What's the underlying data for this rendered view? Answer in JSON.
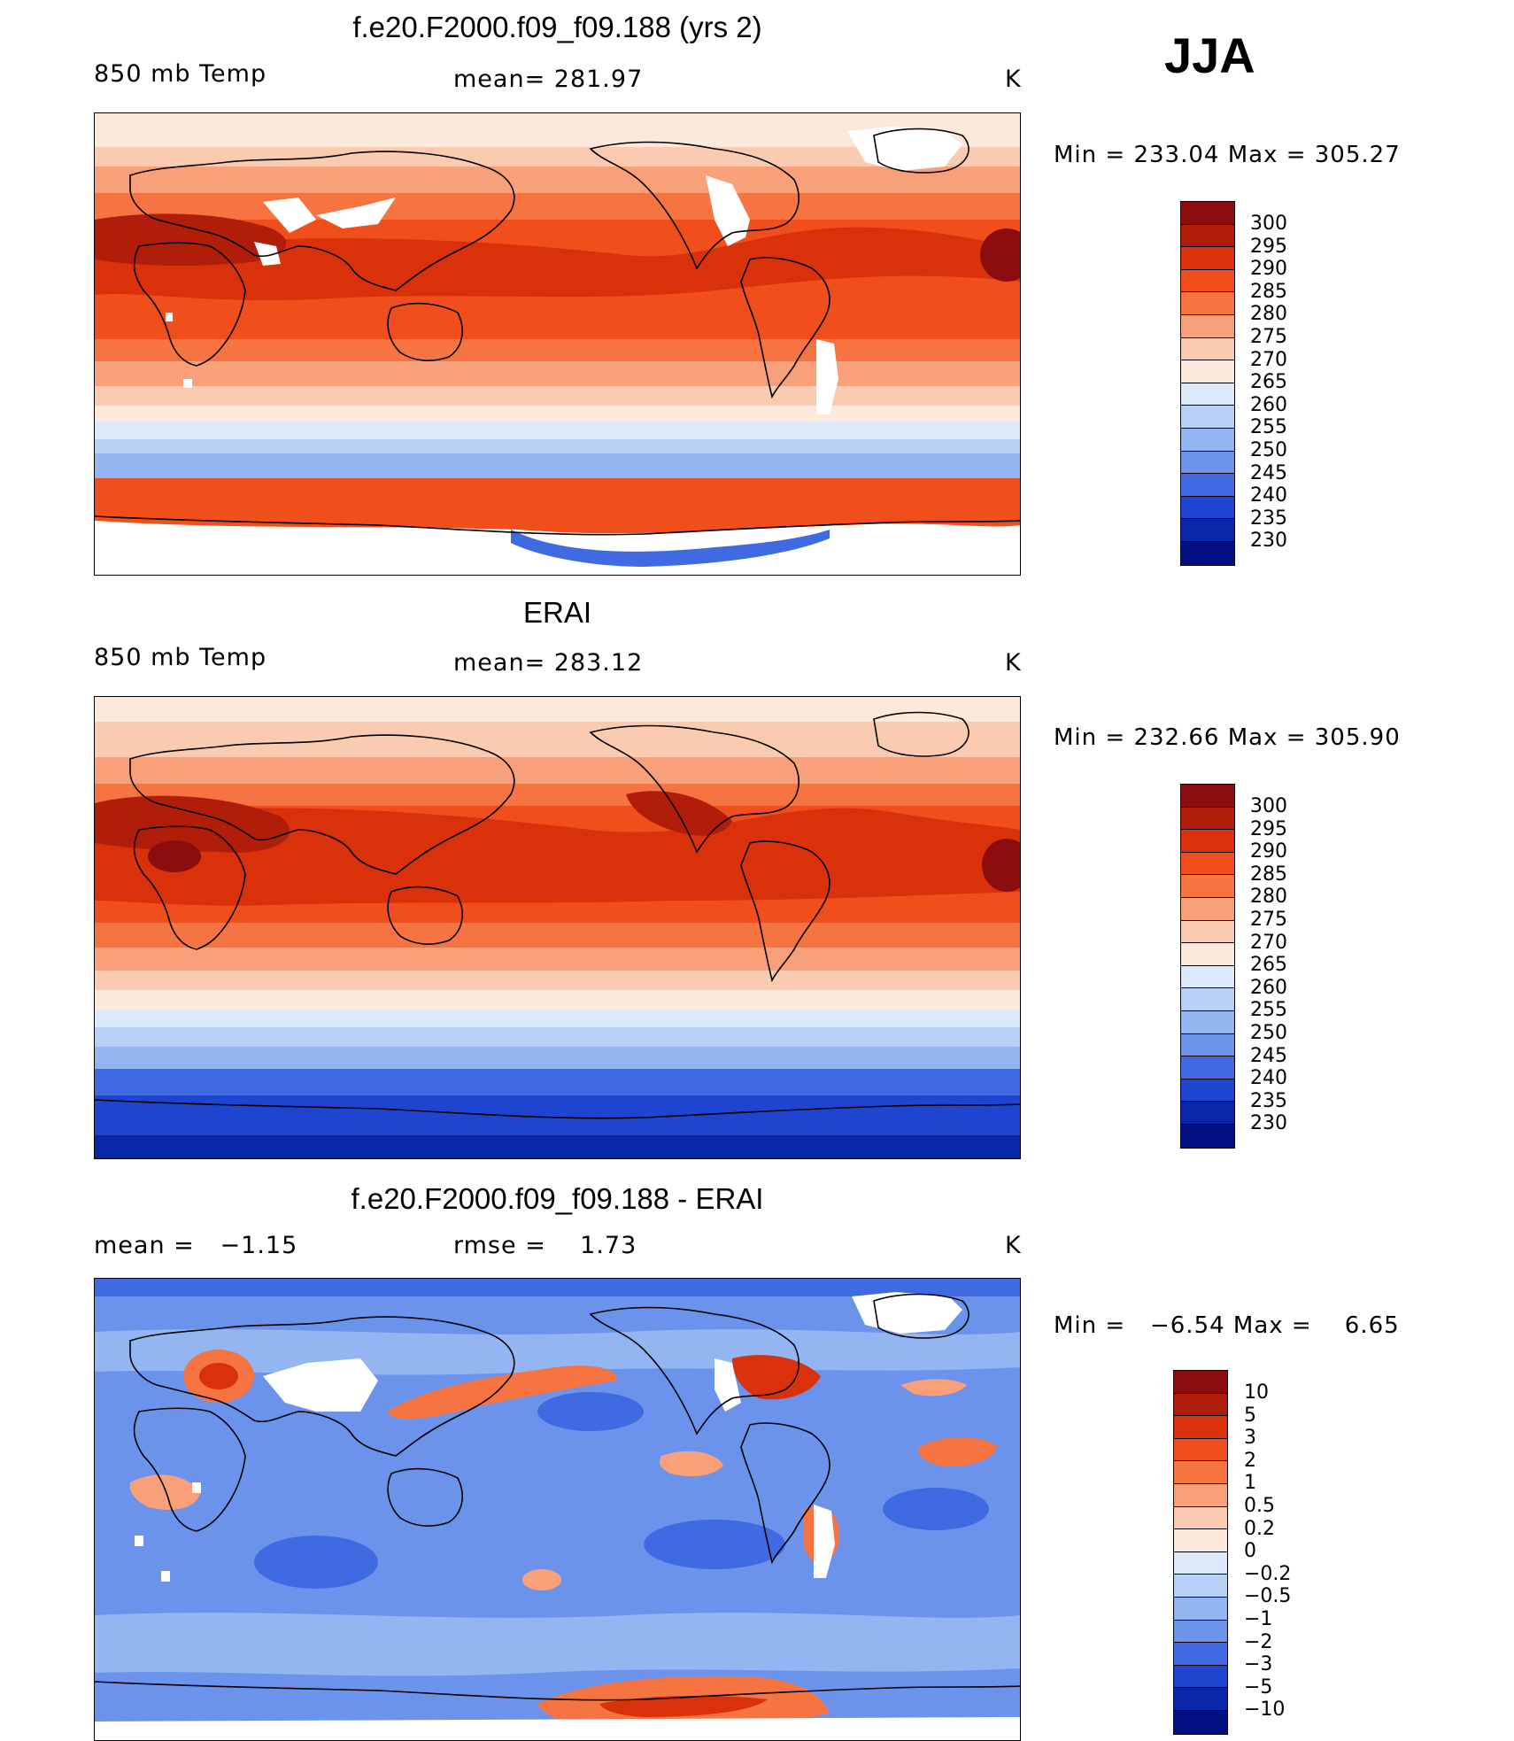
{
  "season": "JJA",
  "panels": [
    {
      "title": "f.e20.F2000.f09_f09.188 (yrs 2)",
      "left_label": "850 mb Temp",
      "center_label": "mean= 281.97",
      "units": "K",
      "minmax": "Min = 233.04 Max = 305.27",
      "palette": "abs"
    },
    {
      "title": "ERAI",
      "left_label": "850 mb Temp",
      "center_label": "mean= 283.12",
      "units": "K",
      "minmax": "Min = 232.66 Max = 305.90",
      "palette": "abs"
    },
    {
      "title": "f.e20.F2000.f09_f09.188 - ERAI",
      "left_label": "mean =   −1.15",
      "center_label": "rmse =    1.73",
      "units": "K",
      "minmax": "Min =   −6.54 Max =    6.65",
      "palette": "diff"
    }
  ],
  "colorbars": {
    "abs": {
      "labels": [
        "300",
        "295",
        "290",
        "285",
        "280",
        "275",
        "270",
        "265",
        "260",
        "255",
        "250",
        "245",
        "240",
        "235",
        "230"
      ],
      "colors": [
        "#8c0d0d",
        "#b01e0a",
        "#d9310a",
        "#f04f1c",
        "#f57442",
        "#f7a07a",
        "#fbcbb1",
        "#fde8dc",
        "#dbe9fb",
        "#b9d1f7",
        "#93b6f3",
        "#6b93ec",
        "#3f6ae2",
        "#1f44cf",
        "#0a26a8",
        "#000e80"
      ]
    },
    "diff": {
      "labels": [
        "10",
        "5",
        "3",
        "2",
        "1",
        "0.5",
        "0.2",
        "0",
        "−0.2",
        "−0.5",
        "−1",
        "−2",
        "−3",
        "−5",
        "−10"
      ],
      "colors": [
        "#8c0d0d",
        "#b01e0a",
        "#d9310a",
        "#f04f1c",
        "#f57442",
        "#f7a07a",
        "#fbcbb1",
        "#fde8dc",
        "#dbe9fb",
        "#b9d1f7",
        "#93b6f3",
        "#6b93ec",
        "#3f6ae2",
        "#1f44cf",
        "#0a26a8",
        "#000e80"
      ]
    }
  }
}
